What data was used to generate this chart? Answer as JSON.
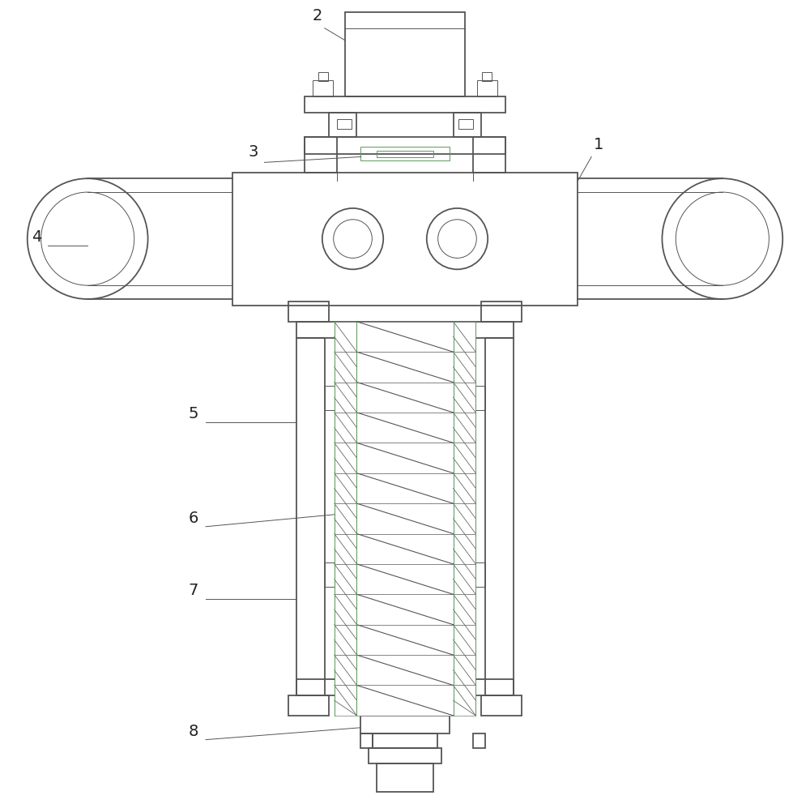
{
  "bg_color": "#ffffff",
  "line_color": "#555555",
  "green_color": "#5a9a5a",
  "label_color": "#222222",
  "lw_main": 1.3,
  "lw_thin": 0.7,
  "lw_hatch": 0.6
}
